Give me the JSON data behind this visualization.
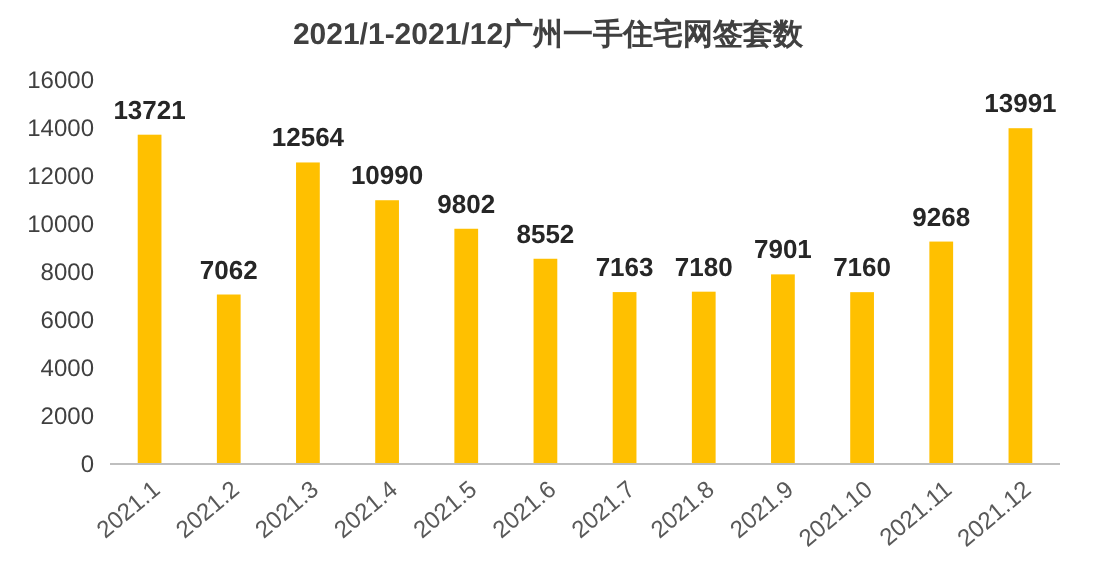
{
  "chart_data": {
    "type": "bar",
    "title": "2021/1-2021/12广州一手住宅网签套数",
    "categories": [
      "2021.1",
      "2021.2",
      "2021.3",
      "2021.4",
      "2021.5",
      "2021.6",
      "2021.7",
      "2021.8",
      "2021.9",
      "2021.10",
      "2021.11",
      "2021.12"
    ],
    "values": [
      13721,
      7062,
      12564,
      10990,
      9802,
      8552,
      7163,
      7180,
      7901,
      7160,
      9268,
      13991
    ],
    "color": "#ffc000",
    "ylim": [
      0,
      16000
    ],
    "yticks": [
      0,
      2000,
      4000,
      6000,
      8000,
      10000,
      12000,
      14000,
      16000
    ],
    "data_labels": true,
    "grid": false
  }
}
